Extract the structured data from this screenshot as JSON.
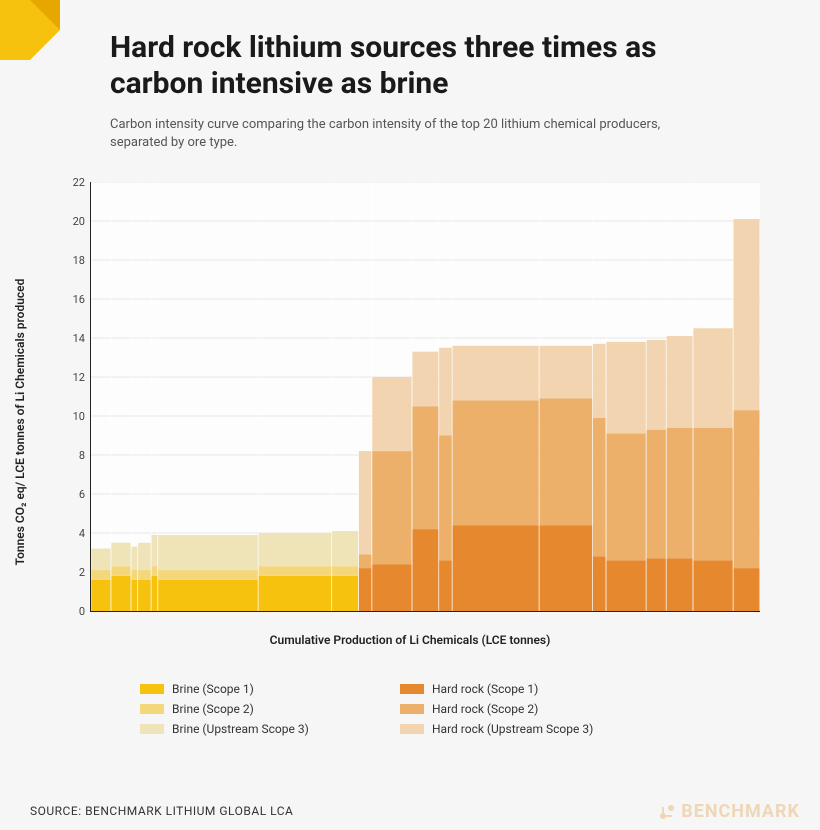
{
  "title": "Hard rock lithium sources three times as carbon intensive as brine",
  "subtitle": "Carbon intensity curve comparing the carbon intensity of the top 20 lithium chemical producers, separated by ore type.",
  "ylabel": "Tonnes CO₂ eq/ LCE tonnes of Li Chemicals produced",
  "xlabel": "Cumulative Production of Li Chemicals (LCE tonnes)",
  "source": "SOURCE:  BENCHMARK LITHIUM GLOBAL LCA",
  "brand": "BENCHMARK",
  "corner_color": "#f6c20e",
  "chart": {
    "type": "stacked-bar-variable-width",
    "ylim": [
      0,
      22
    ],
    "ytick_step": 2,
    "background": "#fdfdfd",
    "grid_color": "#e7e7e7",
    "axis_color": "#222222",
    "colors": {
      "brine": {
        "scope1": "#f6c20e",
        "scope2": "#f4d77a",
        "scope3": "#efe3b8"
      },
      "hardrock": {
        "scope1": "#e6892e",
        "scope2": "#ecb06a",
        "scope3": "#f2d5b0"
      }
    },
    "x_total": 100,
    "bars": [
      {
        "ore": "brine",
        "width": 3,
        "scope1": 1.6,
        "scope2": 0.5,
        "scope3": 1.1
      },
      {
        "ore": "brine",
        "width": 3,
        "scope1": 1.8,
        "scope2": 0.5,
        "scope3": 1.2
      },
      {
        "ore": "brine",
        "width": 1,
        "scope1": 1.6,
        "scope2": 0.5,
        "scope3": 1.2
      },
      {
        "ore": "brine",
        "width": 2,
        "scope1": 1.6,
        "scope2": 0.5,
        "scope3": 1.4
      },
      {
        "ore": "brine",
        "width": 1,
        "scope1": 1.8,
        "scope2": 0.5,
        "scope3": 1.6
      },
      {
        "ore": "brine",
        "width": 15,
        "scope1": 1.6,
        "scope2": 0.5,
        "scope3": 1.8
      },
      {
        "ore": "brine",
        "width": 11,
        "scope1": 1.8,
        "scope2": 0.5,
        "scope3": 1.7
      },
      {
        "ore": "brine",
        "width": 4,
        "scope1": 1.8,
        "scope2": 0.5,
        "scope3": 1.8
      },
      {
        "ore": "hardrock",
        "width": 2,
        "scope1": 2.2,
        "scope2": 0.7,
        "scope3": 5.3
      },
      {
        "ore": "hardrock",
        "width": 6,
        "scope1": 2.4,
        "scope2": 5.8,
        "scope3": 3.8
      },
      {
        "ore": "hardrock",
        "width": 4,
        "scope1": 4.2,
        "scope2": 6.3,
        "scope3": 2.8
      },
      {
        "ore": "hardrock",
        "width": 2,
        "scope1": 2.6,
        "scope2": 6.4,
        "scope3": 4.5
      },
      {
        "ore": "hardrock",
        "width": 13,
        "scope1": 4.4,
        "scope2": 6.4,
        "scope3": 2.8
      },
      {
        "ore": "hardrock",
        "width": 8,
        "scope1": 4.4,
        "scope2": 6.5,
        "scope3": 2.7
      },
      {
        "ore": "hardrock",
        "width": 2,
        "scope1": 2.8,
        "scope2": 7.1,
        "scope3": 3.8
      },
      {
        "ore": "hardrock",
        "width": 6,
        "scope1": 2.6,
        "scope2": 6.5,
        "scope3": 4.7
      },
      {
        "ore": "hardrock",
        "width": 3,
        "scope1": 2.7,
        "scope2": 6.6,
        "scope3": 4.6
      },
      {
        "ore": "hardrock",
        "width": 4,
        "scope1": 2.7,
        "scope2": 6.7,
        "scope3": 4.7
      },
      {
        "ore": "hardrock",
        "width": 6,
        "scope1": 2.6,
        "scope2": 6.8,
        "scope3": 5.1
      },
      {
        "ore": "hardrock",
        "width": 4,
        "scope1": 2.2,
        "scope2": 8.1,
        "scope3": 9.8
      }
    ]
  },
  "legend": [
    {
      "label": "Brine (Scope 1)",
      "color": "#f6c20e"
    },
    {
      "label": "Hard rock (Scope 1)",
      "color": "#e6892e"
    },
    {
      "label": "Brine (Scope 2)",
      "color": "#f4d77a"
    },
    {
      "label": "Hard rock (Scope 2)",
      "color": "#ecb06a"
    },
    {
      "label": "Brine (Upstream Scope 3)",
      "color": "#efe3b8"
    },
    {
      "label": "Hard rock (Upstream Scope 3)",
      "color": "#f2d5b0"
    }
  ]
}
